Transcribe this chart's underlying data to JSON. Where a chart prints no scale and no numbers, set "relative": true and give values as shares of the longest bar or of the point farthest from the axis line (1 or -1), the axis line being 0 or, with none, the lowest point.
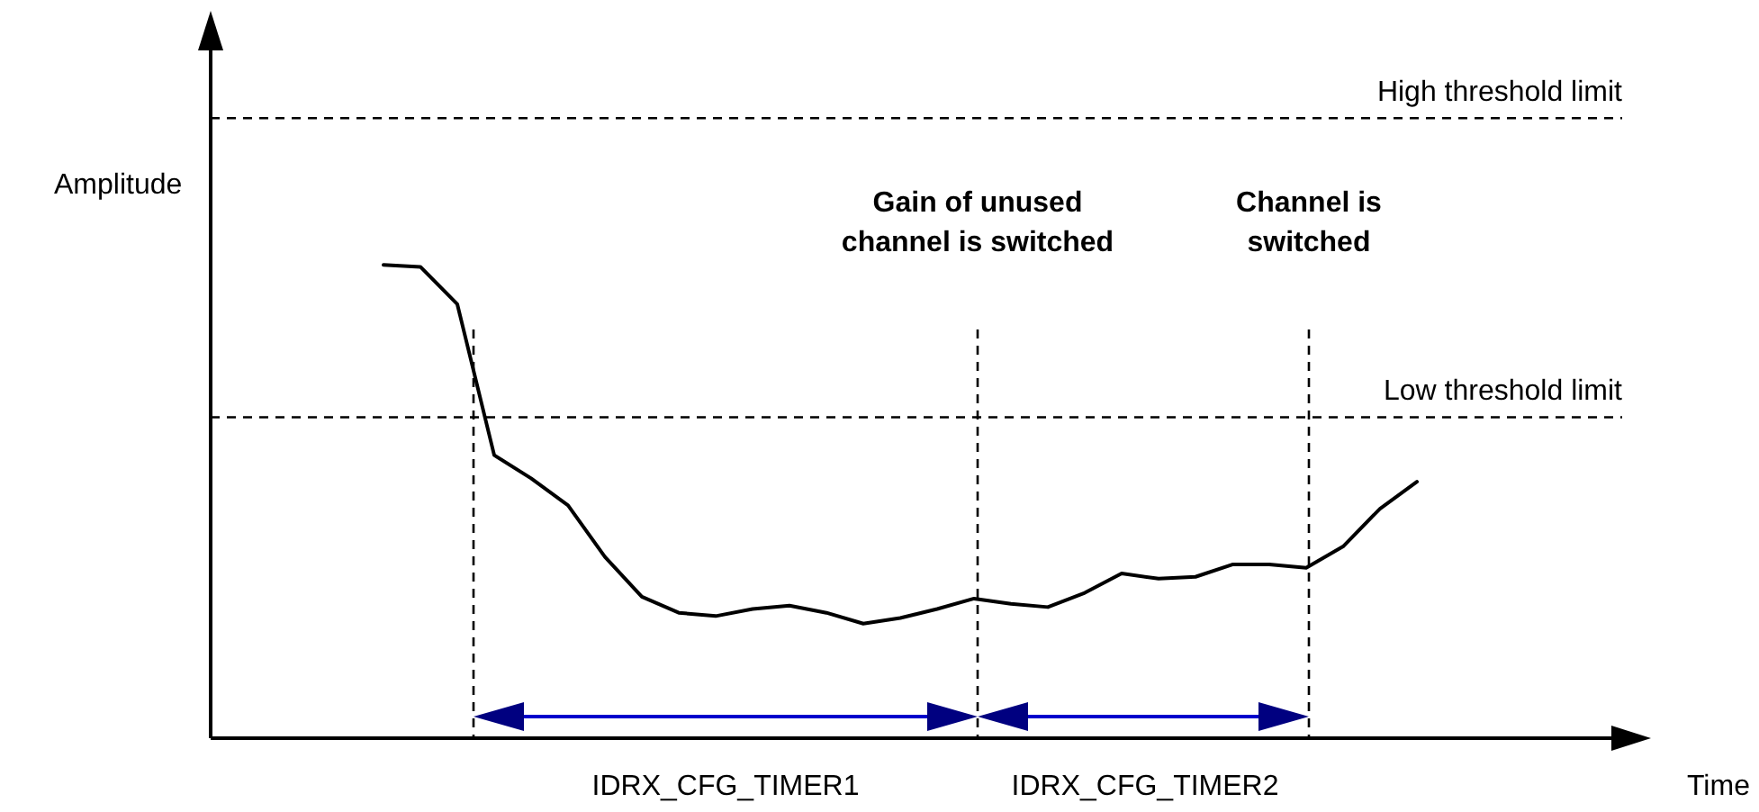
{
  "chart_data": {
    "type": "line",
    "relative": true,
    "marker": "none",
    "categories": [
      null,
      null,
      null,
      null,
      null,
      null,
      null,
      null,
      null,
      null,
      null,
      null,
      null,
      null,
      null,
      null,
      null,
      null,
      null,
      null,
      null,
      null,
      null,
      null,
      null,
      null,
      null,
      null,
      null
    ],
    "series": [
      {
        "color": "#000000",
        "values": [
          1.0,
          0.996,
          0.917,
          0.598,
          0.549,
          0.492,
          0.383,
          0.299,
          0.265,
          0.258,
          0.273,
          0.28,
          0.265,
          0.242,
          0.254,
          0.273,
          0.295,
          0.284,
          0.277,
          0.307,
          0.348,
          0.337,
          0.341,
          0.367,
          0.367,
          0.36,
          0.405,
          0.485,
          0.542
        ]
      }
    ],
    "ref_lines": [
      {
        "axis": "y",
        "value": 1.31,
        "label": "High threshold limit",
        "color": "#000000",
        "line_style": "dashed"
      },
      {
        "axis": "y",
        "value": 0.678,
        "label": "Low threshold limit",
        "color": "#000000",
        "line_style": "dashed"
      }
    ],
    "annotations": [
      "Amplitude",
      "Time",
      "Gain of unused\nchannel is switched",
      "Channel is\nswitched",
      "IDRX_CFG_TIMER1",
      "IDRX_CFG_TIMER2"
    ]
  }
}
